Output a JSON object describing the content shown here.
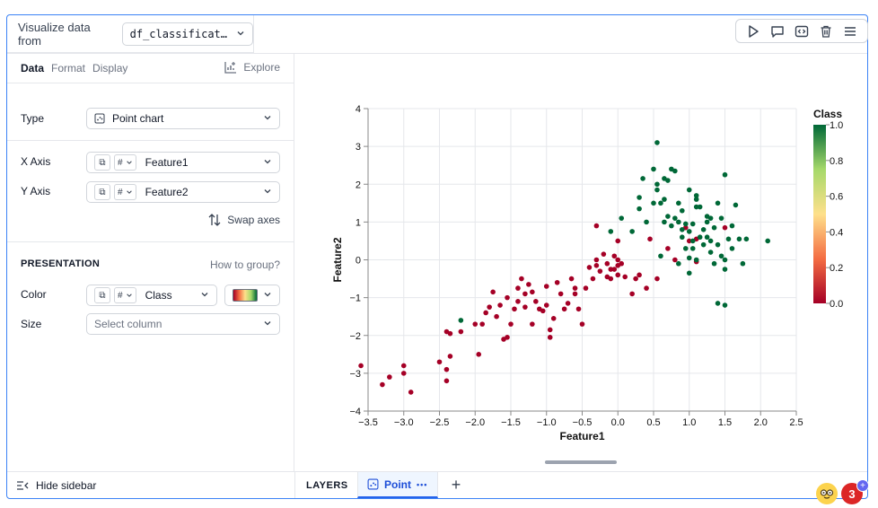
{
  "toolbar": {
    "icons": [
      "play-icon",
      "comment-icon",
      "code-icon",
      "trash-icon",
      "menu-icon"
    ]
  },
  "source": {
    "label": "Visualize data from",
    "dataframe": "df_classificat…"
  },
  "sidebar": {
    "tabs": [
      "Data",
      "Format",
      "Display"
    ],
    "explore_label": "Explore",
    "type_label": "Type",
    "type_value": "Point chart",
    "x_axis_label": "X Axis",
    "x_axis_type": "#",
    "x_axis_value": "Feature1",
    "y_axis_label": "Y Axis",
    "y_axis_type": "#",
    "y_axis_value": "Feature2",
    "swap_label": "Swap axes",
    "presentation_label": "PRESENTATION",
    "how_to_group": "How to group?",
    "color_label": "Color",
    "color_type": "#",
    "color_value": "Class",
    "size_label": "Size",
    "size_placeholder": "Select column"
  },
  "bottom": {
    "hide_sidebar": "Hide sidebar",
    "layers_label": "LAYERS",
    "layer_tab": "Point",
    "layer_more": "•••",
    "add_label": "+"
  },
  "notifications": {
    "count": "3"
  },
  "colors": {
    "accent": "#2563eb",
    "class0": "#a50026",
    "class1": "#006837"
  },
  "chart_data": {
    "type": "scatter",
    "xlabel": "Feature1",
    "ylabel": "Feature2",
    "xlim": [
      -3.5,
      2.5
    ],
    "ylim": [
      -4,
      4
    ],
    "xticks": [
      "−3.5",
      "−3.0",
      "−2.5",
      "−2.0",
      "−1.5",
      "−1.0",
      "−0.5",
      "0.0",
      "0.5",
      "1.0",
      "1.5",
      "2.0",
      "2.5"
    ],
    "yticks": [
      "4",
      "3",
      "2",
      "1",
      "0",
      "−1",
      "−2",
      "−3",
      "−4"
    ],
    "grid": true,
    "legend": {
      "title": "Class",
      "labels": [
        "1.0",
        "0.8",
        "0.6",
        "0.4",
        "0.2",
        "0.0"
      ],
      "placement": "right"
    },
    "series": [
      {
        "values": [
          [
            -3.6,
            -2.8
          ],
          [
            -3.3,
            -3.3
          ],
          [
            -3.2,
            -3.1
          ],
          [
            -3.0,
            -2.8
          ],
          [
            -3.0,
            -3.0
          ],
          [
            -2.9,
            -3.5
          ],
          [
            -2.5,
            -2.7
          ],
          [
            -2.4,
            -2.9
          ],
          [
            -2.4,
            -3.2
          ],
          [
            -2.4,
            -1.9
          ],
          [
            -2.35,
            -1.95
          ],
          [
            -2.35,
            -2.55
          ],
          [
            -2.2,
            -1.9
          ],
          [
            -2.0,
            -1.7
          ],
          [
            -1.9,
            -1.7
          ],
          [
            -1.95,
            -2.5
          ],
          [
            -1.85,
            -1.4
          ],
          [
            -1.8,
            -1.25
          ],
          [
            -1.75,
            -0.85
          ],
          [
            -1.7,
            -1.5
          ],
          [
            -1.65,
            -1.2
          ],
          [
            -1.6,
            -2.1
          ],
          [
            -1.55,
            -2.05
          ],
          [
            -1.55,
            -1.0
          ],
          [
            -1.5,
            -1.7
          ],
          [
            -1.45,
            -1.3
          ],
          [
            -1.4,
            -1.1
          ],
          [
            -1.4,
            -0.75
          ],
          [
            -1.35,
            -0.5
          ],
          [
            -1.3,
            -1.25
          ],
          [
            -1.3,
            -0.9
          ],
          [
            -1.25,
            -0.65
          ],
          [
            -1.2,
            -1.7
          ],
          [
            -1.2,
            -0.85
          ],
          [
            -1.15,
            -1.1
          ],
          [
            -1.1,
            -1.3
          ],
          [
            -1.05,
            -1.35
          ],
          [
            -1.0,
            -1.2
          ],
          [
            -1.0,
            -0.7
          ],
          [
            -0.95,
            -1.85
          ],
          [
            -0.95,
            -2.05
          ],
          [
            -0.9,
            -1.55
          ],
          [
            -0.85,
            -0.6
          ],
          [
            -0.8,
            -0.9
          ],
          [
            -0.75,
            -1.3
          ],
          [
            -0.7,
            -1.15
          ],
          [
            -0.65,
            -0.5
          ],
          [
            -0.6,
            -0.9
          ],
          [
            -0.6,
            -0.75
          ],
          [
            -0.55,
            -1.3
          ],
          [
            -0.5,
            -1.7
          ],
          [
            -0.45,
            -0.75
          ],
          [
            -0.4,
            -0.2
          ],
          [
            -0.35,
            -0.5
          ],
          [
            -0.3,
            0.0
          ],
          [
            -0.3,
            -0.15
          ],
          [
            -0.25,
            -0.3
          ],
          [
            -0.2,
            0.15
          ],
          [
            -0.15,
            -0.1
          ],
          [
            -0.15,
            -0.45
          ],
          [
            -0.1,
            -0.5
          ],
          [
            -0.1,
            -0.25
          ],
          [
            -0.05,
            -0.25
          ],
          [
            0.0,
            0.0
          ],
          [
            0.0,
            -0.15
          ],
          [
            0.0,
            -0.4
          ],
          [
            0.0,
            0.5
          ],
          [
            0.05,
            -0.1
          ],
          [
            -0.05,
            0.1
          ],
          [
            0.1,
            -0.45
          ],
          [
            0.2,
            -0.9
          ],
          [
            0.25,
            -0.5
          ],
          [
            0.3,
            -0.4
          ],
          [
            0.4,
            -0.75
          ],
          [
            0.55,
            -0.5
          ],
          [
            -0.3,
            0.9
          ],
          [
            0.45,
            0.55
          ],
          [
            0.7,
            0.3
          ],
          [
            1.0,
            0.5
          ],
          [
            1.1,
            0.55
          ],
          [
            0.8,
            0.0
          ],
          [
            0.95,
            0.85
          ],
          [
            1.1,
            -0.05
          ],
          [
            1.5,
            0.85
          ]
        ]
      },
      {
        "values": [
          [
            -2.2,
            -1.6
          ],
          [
            0.55,
            3.1
          ],
          [
            0.5,
            2.4
          ],
          [
            0.65,
            2.15
          ],
          [
            0.7,
            2.1
          ],
          [
            0.75,
            2.4
          ],
          [
            0.8,
            2.35
          ],
          [
            0.35,
            2.15
          ],
          [
            0.3,
            1.65
          ],
          [
            0.3,
            1.35
          ],
          [
            0.5,
            1.5
          ],
          [
            0.55,
            1.85
          ],
          [
            0.55,
            2.0
          ],
          [
            0.6,
            1.5
          ],
          [
            0.65,
            1.6
          ],
          [
            0.65,
            1.0
          ],
          [
            0.7,
            1.15
          ],
          [
            0.75,
            0.9
          ],
          [
            0.8,
            1.1
          ],
          [
            0.85,
            1.0
          ],
          [
            0.85,
            1.5
          ],
          [
            0.9,
            1.3
          ],
          [
            0.9,
            0.8
          ],
          [
            0.95,
            0.95
          ],
          [
            0.95,
            0.3
          ],
          [
            1.0,
            1.85
          ],
          [
            1.0,
            0.75
          ],
          [
            1.0,
            0.05
          ],
          [
            1.05,
            0.3
          ],
          [
            1.05,
            0.95
          ],
          [
            1.05,
            0.5
          ],
          [
            1.1,
            1.6
          ],
          [
            1.1,
            1.4
          ],
          [
            1.1,
            0.0
          ],
          [
            1.15,
            1.4
          ],
          [
            1.15,
            0.6
          ],
          [
            1.2,
            0.8
          ],
          [
            1.2,
            0.4
          ],
          [
            1.25,
            1.0
          ],
          [
            1.25,
            0.6
          ],
          [
            1.3,
            1.1
          ],
          [
            1.3,
            0.2
          ],
          [
            1.35,
            0.85
          ],
          [
            1.35,
            -0.1
          ],
          [
            1.4,
            1.5
          ],
          [
            1.4,
            0.4
          ],
          [
            1.45,
            0.1
          ],
          [
            1.45,
            1.1
          ],
          [
            1.5,
            0.0
          ],
          [
            1.5,
            2.25
          ],
          [
            1.5,
            -0.25
          ],
          [
            1.55,
            0.55
          ],
          [
            1.6,
            0.3
          ],
          [
            1.65,
            1.45
          ],
          [
            1.7,
            0.55
          ],
          [
            1.75,
            -0.1
          ],
          [
            1.8,
            0.55
          ],
          [
            2.1,
            0.5
          ],
          [
            1.4,
            -1.15
          ],
          [
            1.5,
            -1.2
          ],
          [
            0.2,
            0.75
          ],
          [
            0.05,
            1.1
          ],
          [
            -0.1,
            0.75
          ],
          [
            0.6,
            0.1
          ],
          [
            0.85,
            -0.1
          ],
          [
            1.0,
            -0.35
          ],
          [
            0.4,
            1.0
          ],
          [
            1.1,
            1.7
          ],
          [
            1.25,
            1.15
          ],
          [
            0.9,
            0.6
          ],
          [
            1.3,
            0.5
          ],
          [
            1.6,
            0.9
          ]
        ]
      }
    ]
  }
}
